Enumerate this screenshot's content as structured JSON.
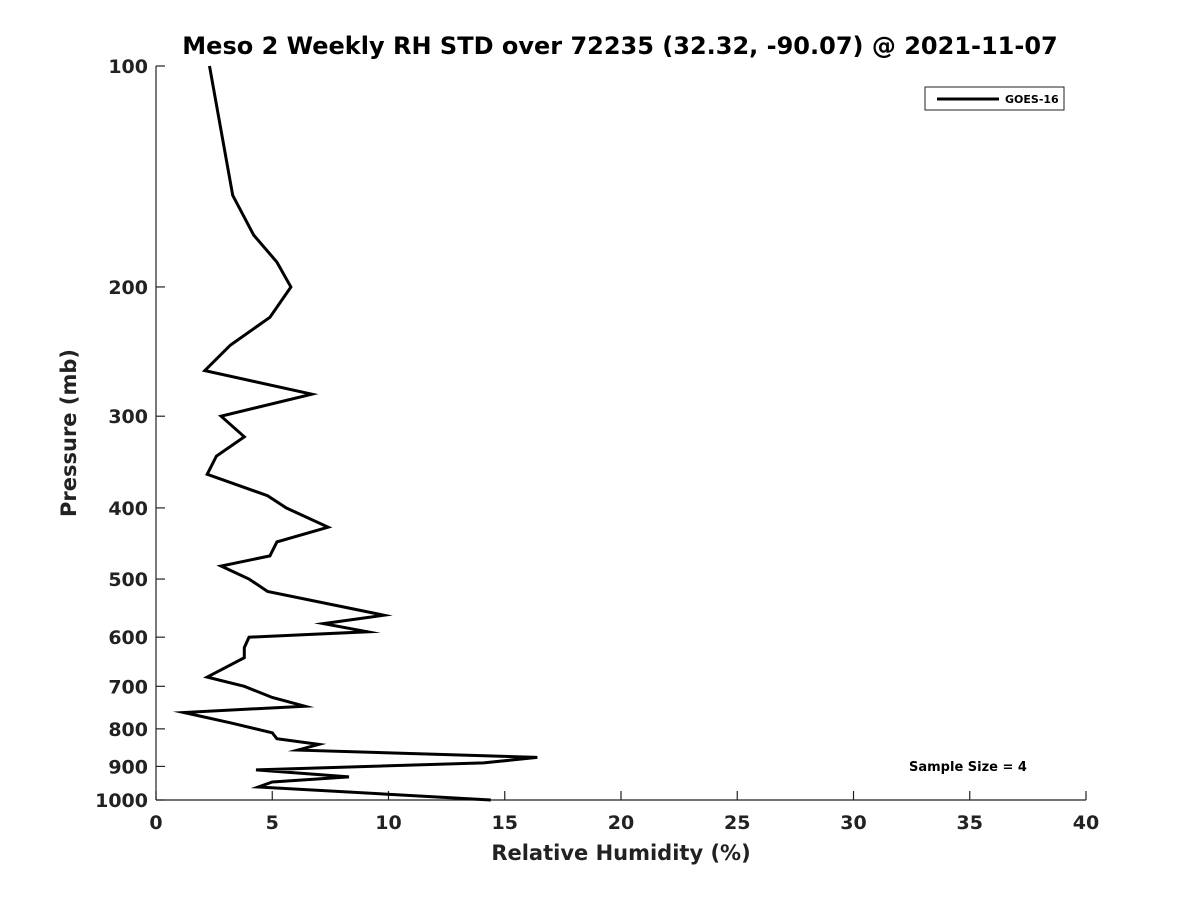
{
  "chart_data": {
    "type": "line",
    "title": "Meso 2 Weekly RH STD over 72235 (32.32, -90.07) @ 2021-11-07",
    "xlabel": "Relative Humidity (%)",
    "ylabel": "Pressure (mb)",
    "xlim": [
      0,
      40
    ],
    "ylim": [
      1000,
      100
    ],
    "yscale": "log",
    "x_ticks": [
      "0",
      "5",
      "10",
      "15",
      "20",
      "25",
      "30",
      "35",
      "40"
    ],
    "y_ticks": [
      "100",
      "200",
      "300",
      "400",
      "500",
      "600",
      "700",
      "800",
      "900",
      "1000"
    ],
    "grid": false,
    "legend": {
      "placement": "top-right"
    },
    "annotation": "Sample Size = 4",
    "series": [
      {
        "name": "GOES-16",
        "color": "#000000",
        "points": [
          [
            2.3,
            100
          ],
          [
            3.3,
            150
          ],
          [
            4.2,
            170
          ],
          [
            5.2,
            185
          ],
          [
            5.8,
            200
          ],
          [
            4.9,
            220
          ],
          [
            3.2,
            240
          ],
          [
            2.1,
            260
          ],
          [
            6.7,
            280
          ],
          [
            2.8,
            300
          ],
          [
            3.8,
            320
          ],
          [
            2.6,
            340
          ],
          [
            2.2,
            360
          ],
          [
            4.8,
            385
          ],
          [
            5.6,
            400
          ],
          [
            7.4,
            425
          ],
          [
            5.2,
            445
          ],
          [
            4.9,
            465
          ],
          [
            2.8,
            480
          ],
          [
            4.0,
            500
          ],
          [
            4.8,
            520
          ],
          [
            9.8,
            560
          ],
          [
            7.2,
            575
          ],
          [
            9.1,
            590
          ],
          [
            4.0,
            600
          ],
          [
            3.8,
            620
          ],
          [
            3.8,
            640
          ],
          [
            2.2,
            680
          ],
          [
            3.8,
            700
          ],
          [
            5.0,
            725
          ],
          [
            6.4,
            745
          ],
          [
            1.2,
            760
          ],
          [
            3.2,
            785
          ],
          [
            5.0,
            810
          ],
          [
            5.2,
            825
          ],
          [
            7.0,
            840
          ],
          [
            6.1,
            855
          ],
          [
            16.4,
            875
          ],
          [
            14.1,
            890
          ],
          [
            4.3,
            910
          ],
          [
            8.3,
            930
          ],
          [
            5.0,
            945
          ],
          [
            4.4,
            960
          ],
          [
            14.4,
            1000
          ]
        ]
      }
    ]
  }
}
